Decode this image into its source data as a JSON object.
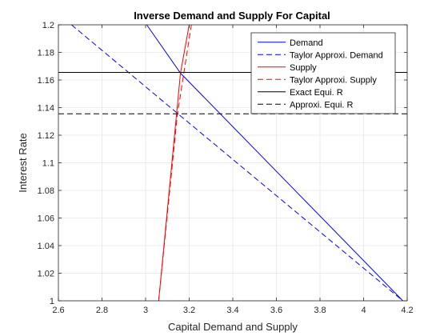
{
  "chart_data": {
    "type": "line",
    "title": "Inverse Demand and Supply For Capital",
    "xlabel": "Capital Demand and Supply",
    "ylabel": "Interest Rate",
    "xlim": [
      2.6,
      4.2
    ],
    "ylim": [
      1.0,
      1.2
    ],
    "xticks": [
      2.6,
      2.8,
      3.0,
      3.2,
      3.4,
      3.6,
      3.8,
      4.0,
      4.2
    ],
    "xtick_labels": [
      "2.6",
      "2.8",
      "3",
      "3.2",
      "3.4",
      "3.6",
      "3.8",
      "4",
      "4.2"
    ],
    "yticks": [
      1.0,
      1.02,
      1.04,
      1.06,
      1.08,
      1.1,
      1.12,
      1.14,
      1.16,
      1.18,
      1.2
    ],
    "ytick_labels": [
      "1",
      "1.02",
      "1.04",
      "1.06",
      "1.08",
      "1.1",
      "1.12",
      "1.14",
      "1.16",
      "1.18",
      "1.2"
    ],
    "grid": true,
    "legend_position": "top-right",
    "series": [
      {
        "name": "Demand",
        "color": "#0000ff",
        "dash": "solid",
        "x": [
          3.005,
          3.16,
          4.18
        ],
        "y": [
          1.2,
          1.165,
          1.0
        ]
      },
      {
        "name": "Taylor Approxi. Demand",
        "color": "#0000ff",
        "dash": "dashed",
        "x": [
          2.66,
          3.16,
          4.18
        ],
        "y": [
          1.2,
          1.134,
          1.0
        ]
      },
      {
        "name": "Supply",
        "color": "#ff0000",
        "dash": "solid",
        "x": [
          3.06,
          3.16,
          3.2
        ],
        "y": [
          1.0,
          1.165,
          1.2
        ]
      },
      {
        "name": "Taylor Approxi. Supply",
        "color": "#ff0000",
        "dash": "dashed",
        "x": [
          3.06,
          3.145,
          3.21
        ],
        "y": [
          1.0,
          1.134,
          1.2
        ]
      },
      {
        "name": "Exact Equi. R",
        "color": "#000000",
        "dash": "solid",
        "x": [
          2.6,
          4.2
        ],
        "y": [
          1.1655,
          1.1655
        ]
      },
      {
        "name": "Approxi. Equi. R",
        "color": "#000000",
        "dash": "dashed",
        "x": [
          2.6,
          4.2
        ],
        "y": [
          1.1355,
          1.1355
        ]
      }
    ]
  }
}
